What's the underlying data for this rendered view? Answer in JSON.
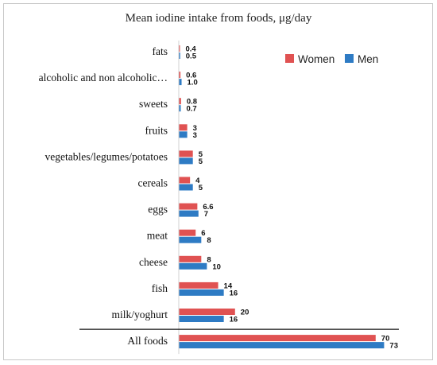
{
  "chart_data": {
    "type": "bar",
    "orientation": "horizontal",
    "title": "Mean iodine intake from foods, μg/day",
    "categories": [
      "fats",
      "alcoholic and non alcoholic…",
      "sweets",
      "fruits",
      "vegetables/legumes/potatoes",
      "cereals",
      "eggs",
      "meat",
      "cheese",
      "fish",
      "milk/yoghurt",
      "All foods"
    ],
    "series": [
      {
        "name": "Women",
        "color": "#e05252",
        "values": [
          0.4,
          0.6,
          0.8,
          3,
          5,
          4,
          6.6,
          6,
          8,
          14,
          20,
          70
        ],
        "labels": [
          "0.4",
          "0.6",
          "0.8",
          "3",
          "5",
          "4",
          "6.6",
          "6",
          "8",
          "14",
          "20",
          "70"
        ]
      },
      {
        "name": "Men",
        "color": "#2e7bc4",
        "values": [
          0.5,
          1.0,
          0.7,
          3,
          5,
          5,
          7,
          8,
          10,
          16,
          16,
          73
        ],
        "labels": [
          "0.5",
          "1.0",
          "0.7",
          "3",
          "5",
          "5",
          "7",
          "8",
          "10",
          "16",
          "16",
          "73"
        ]
      }
    ],
    "xlim": [
      0,
      75
    ],
    "grid": false,
    "legend_position": "top-right",
    "separator_before_last": true
  }
}
